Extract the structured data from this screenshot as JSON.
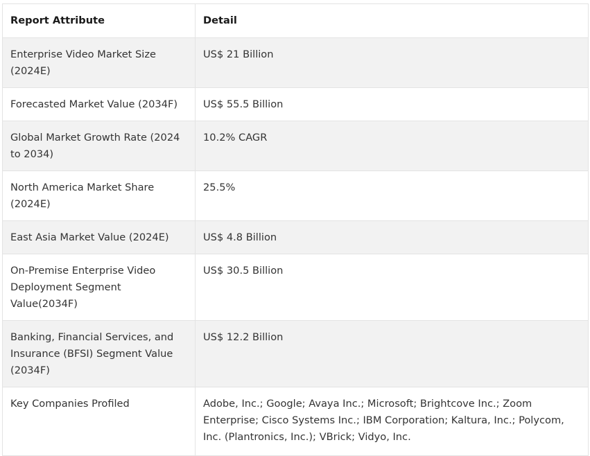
{
  "table": {
    "headers": [
      "Report Attribute",
      "Detail"
    ],
    "rows": [
      {
        "attribute": "Enterprise Video Market Size (2024E)",
        "detail": "US$ 21 Billion"
      },
      {
        "attribute": "Forecasted Market Value (2034F)",
        "detail": "US$ 55.5 Billion"
      },
      {
        "attribute": "Global Market Growth Rate (2024 to 2034)",
        "detail": "10.2% CAGR"
      },
      {
        "attribute": "North America Market Share (2024E)",
        "detail": "25.5%"
      },
      {
        "attribute": "East Asia Market Value (2024E)",
        "detail": "US$ 4.8 Billion"
      },
      {
        "attribute": "On-Premise Enterprise Video Deployment Segment Value(2034F)",
        "detail": "US$ 30.5 Billion"
      },
      {
        "attribute": "Banking, Financial Services, and Insurance (BFSI) Segment Value (2034F)",
        "detail": "US$ 12.2 Billion"
      },
      {
        "attribute": "Key Companies Profiled",
        "detail": "Adobe, Inc.; Google; Avaya Inc.; Microsoft; Brightcove Inc.; Zoom Enterprise; Cisco Systems Inc.; IBM Corporation; Kaltura, Inc.; Polycom, Inc. (Plantronics, Inc.); VBrick; Vidyo, Inc."
      }
    ]
  }
}
